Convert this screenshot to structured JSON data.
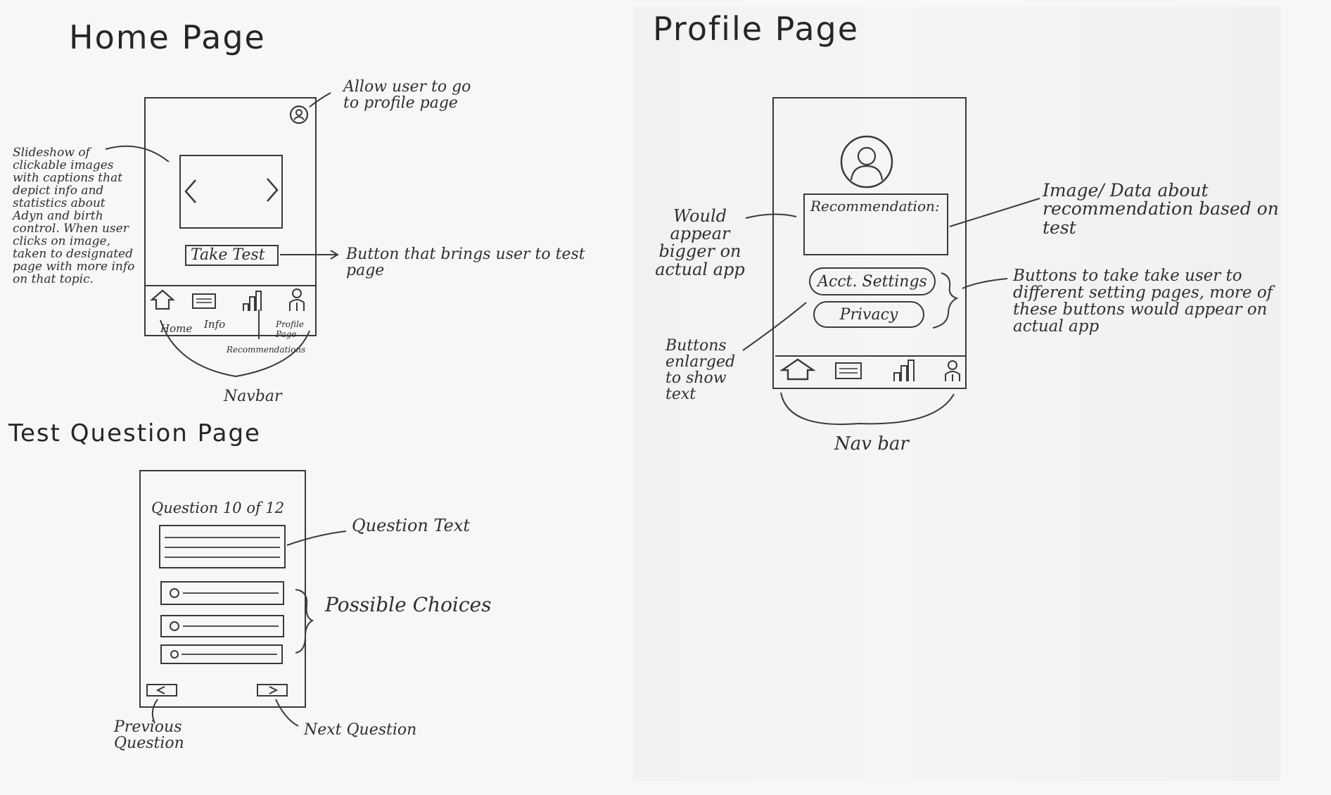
{
  "titles": {
    "home": "Home Page",
    "profile": "Profile Page",
    "test": "Test Question Page"
  },
  "home": {
    "take_test_label": "Take Test",
    "nav_labels": [
      "Home",
      "Info",
      "Recommendations",
      "Profile Page"
    ],
    "notes": {
      "profile_icon": "Allow user to go to profile page",
      "slideshow": "Slideshow of clickable images with captions that depict info and statistics about Adyn and birth control. When user clicks on image, taken to designated page with more info on that topic.",
      "take_test": "Button that brings user to test page",
      "navbar": "Navbar"
    }
  },
  "profile": {
    "recommendation_label": "Recommendation:",
    "acct_settings_label": "Acct. Settings",
    "privacy_label": "Privacy",
    "notes": {
      "bigger": "Would appear bigger on actual app",
      "image_data": "Image/ Data about recommendation based on test",
      "buttons_settings": "Buttons to take take user to different setting pages, more of these buttons would appear on actual app",
      "buttons_enlarged": "Buttons enlarged to show text",
      "navbar": "Nav bar"
    }
  },
  "test": {
    "question_counter": "Question 10 of 12",
    "notes": {
      "question_text": "Question Text",
      "choices": "Possible Choices",
      "previous": "Previous Question",
      "next": "Next Question"
    }
  },
  "icons": [
    "profile-icon",
    "left-chevron-icon",
    "right-chevron-icon",
    "home-icon",
    "info-icon",
    "bar-chart-icon",
    "person-icon",
    "avatar-icon",
    "radio-icon",
    "prev-arrow-icon",
    "next-arrow-icon"
  ]
}
